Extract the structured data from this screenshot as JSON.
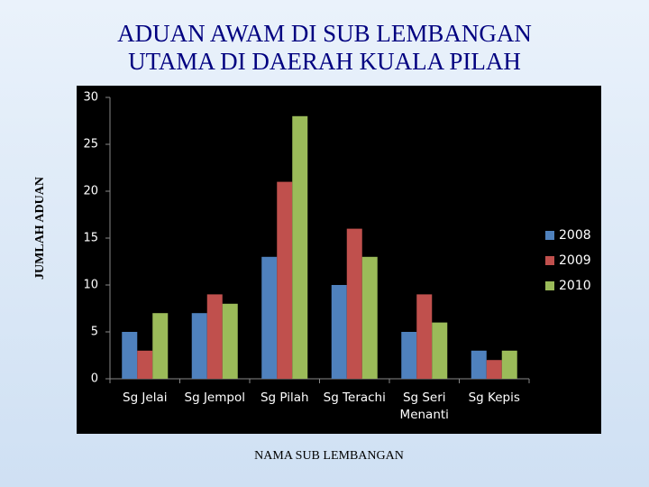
{
  "chart_data": {
    "type": "bar",
    "title": "ADUAN AWAM  DI SUB LEMBANGAN UTAMA DI DAERAH KUALA PILAH",
    "x_label": "NAMA SUB LEMBANGAN",
    "y_label": "JUMLAH ADUAN",
    "categories": [
      "Sg Jelai",
      "Sg Jempol",
      "Sg Pilah",
      "Sg Terachi",
      "Sg Seri Menanti",
      "Sg Kepis"
    ],
    "series": [
      {
        "name": "2008",
        "color": "#4f81bd",
        "values": [
          5,
          7,
          13,
          10,
          5,
          3
        ]
      },
      {
        "name": "2009",
        "color": "#c0504d",
        "values": [
          3,
          9,
          21,
          16,
          9,
          2
        ]
      },
      {
        "name": "2010",
        "color": "#9bbb59",
        "values": [
          7,
          8,
          28,
          13,
          6,
          3
        ]
      }
    ],
    "ylim": [
      0,
      30
    ],
    "yticks": [
      0,
      5,
      10,
      15,
      20,
      25,
      30
    ],
    "legend": "right"
  }
}
